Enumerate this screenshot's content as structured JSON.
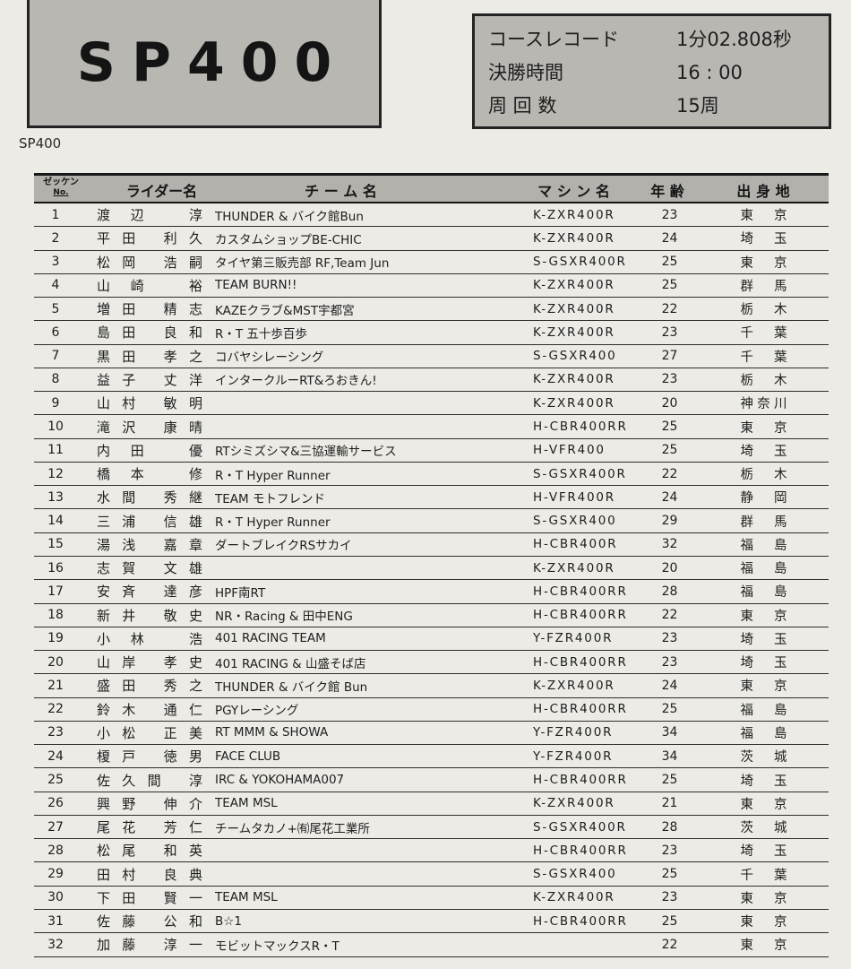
{
  "class_box": {
    "title": "SP400"
  },
  "info_box": {
    "rows": [
      {
        "label": "コースレコード",
        "value": "1分02.808秒"
      },
      {
        "label": "決勝時間",
        "value": "16 : 00"
      },
      {
        "label": "周 回 数",
        "value": "15周"
      }
    ]
  },
  "section_label": "SP400",
  "colors": {
    "box_fill": "#b9b7b2",
    "header_band": "#b3b1ac",
    "rule": "#2e2e2e",
    "page_bg": "#ecebe6"
  },
  "table": {
    "headers": {
      "no_top": "ゼッケン",
      "no_bottom": "No.",
      "rider": "ライダー名",
      "team": "チ ー ム 名",
      "machine": "マ シ ン 名",
      "age": "年 齢",
      "origin": "出 身 地"
    },
    "rows": [
      {
        "no": "1",
        "rider": "渡辺 淳",
        "team": "THUNDER & バイク館Bun",
        "machine": "K-ZXR400R",
        "age": "23",
        "origin": "東京"
      },
      {
        "no": "2",
        "rider": "平田 利久",
        "team": "カスタムショップBE-CHIC",
        "machine": "K-ZXR400R",
        "age": "24",
        "origin": "埼玉"
      },
      {
        "no": "3",
        "rider": "松岡 浩嗣",
        "team": "タイヤ第三販売部 RF,Team Jun",
        "machine": "S-GSXR400R",
        "age": "25",
        "origin": "東京"
      },
      {
        "no": "4",
        "rider": "山崎 裕",
        "team": "TEAM BURN!!",
        "machine": "K-ZXR400R",
        "age": "25",
        "origin": "群馬"
      },
      {
        "no": "5",
        "rider": "増田 精志",
        "team": "KAZEクラブ&MST宇都宮",
        "machine": "K-ZXR400R",
        "age": "22",
        "origin": "栃木"
      },
      {
        "no": "6",
        "rider": "島田 良和",
        "team": "R・T 五十歩百歩",
        "machine": "K-ZXR400R",
        "age": "23",
        "origin": "千葉"
      },
      {
        "no": "7",
        "rider": "黒田 孝之",
        "team": "コバヤシレーシング",
        "machine": "S-GSXR400",
        "age": "27",
        "origin": "千葉"
      },
      {
        "no": "8",
        "rider": "益子 丈洋",
        "team": "インタークルーRT&ろおきん!",
        "machine": "K-ZXR400R",
        "age": "23",
        "origin": "栃木"
      },
      {
        "no": "9",
        "rider": "山村 敏明",
        "team": "",
        "machine": "K-ZXR400R",
        "age": "20",
        "origin": "神奈川"
      },
      {
        "no": "10",
        "rider": "滝沢 康晴",
        "team": "",
        "machine": "H-CBR400RR",
        "age": "25",
        "origin": "東京"
      },
      {
        "no": "11",
        "rider": "内田 優",
        "team": "RTシミズシマ&三協運輸サービス",
        "machine": "H-VFR400",
        "age": "25",
        "origin": "埼玉"
      },
      {
        "no": "12",
        "rider": "橋本 修",
        "team": "R・T Hyper Runner",
        "machine": "S-GSXR400R",
        "age": "22",
        "origin": "栃木"
      },
      {
        "no": "13",
        "rider": "水間 秀継",
        "team": "TEAM モトフレンド",
        "machine": "H-VFR400R",
        "age": "24",
        "origin": "静岡"
      },
      {
        "no": "14",
        "rider": "三浦 信雄",
        "team": "R・T Hyper Runner",
        "machine": "S-GSXR400",
        "age": "29",
        "origin": "群馬"
      },
      {
        "no": "15",
        "rider": "湯浅 嘉章",
        "team": "ダートブレイクRSサカイ",
        "machine": "H-CBR400R",
        "age": "32",
        "origin": "福島"
      },
      {
        "no": "16",
        "rider": "志賀 文雄",
        "team": "",
        "machine": "K-ZXR400R",
        "age": "20",
        "origin": "福島"
      },
      {
        "no": "17",
        "rider": "安斉 達彦",
        "team": "HPF南RT",
        "machine": "H-CBR400RR",
        "age": "28",
        "origin": "福島"
      },
      {
        "no": "18",
        "rider": "新井 敬史",
        "team": "NR・Racing & 田中ENG",
        "machine": "H-CBR400RR",
        "age": "22",
        "origin": "東京"
      },
      {
        "no": "19",
        "rider": "小林 浩",
        "team": "401 RACING TEAM",
        "machine": "Y-FZR400R",
        "age": "23",
        "origin": "埼玉"
      },
      {
        "no": "20",
        "rider": "山岸 孝史",
        "team": "401 RACING & 山盛そば店",
        "machine": "H-CBR400RR",
        "age": "23",
        "origin": "埼玉"
      },
      {
        "no": "21",
        "rider": "盛田 秀之",
        "team": "THUNDER & バイク館 Bun",
        "machine": "K-ZXR400R",
        "age": "24",
        "origin": "東京"
      },
      {
        "no": "22",
        "rider": "鈴木 通仁",
        "team": "PGYレーシング",
        "machine": "H-CBR400RR",
        "age": "25",
        "origin": "福島"
      },
      {
        "no": "23",
        "rider": "小松 正美",
        "team": "RT MMM & SHOWA",
        "machine": "Y-FZR400R",
        "age": "34",
        "origin": "福島"
      },
      {
        "no": "24",
        "rider": "榎戸 徳男",
        "team": "FACE CLUB",
        "machine": "Y-FZR400R",
        "age": "34",
        "origin": "茨城"
      },
      {
        "no": "25",
        "rider": "佐久間 淳",
        "team": "IRC & YOKOHAMA007",
        "machine": "H-CBR400RR",
        "age": "25",
        "origin": "埼玉"
      },
      {
        "no": "26",
        "rider": "興野 伸介",
        "team": "TEAM MSL",
        "machine": "K-ZXR400R",
        "age": "21",
        "origin": "東京"
      },
      {
        "no": "27",
        "rider": "尾花 芳仁",
        "team": "チームタカノ+㈲尾花工業所",
        "machine": "S-GSXR400R",
        "age": "28",
        "origin": "茨城"
      },
      {
        "no": "28",
        "rider": "松尾 和英",
        "team": "",
        "machine": "H-CBR400RR",
        "age": "23",
        "origin": "埼玉"
      },
      {
        "no": "29",
        "rider": "田村 良典",
        "team": "",
        "machine": "S-GSXR400",
        "age": "25",
        "origin": "千葉"
      },
      {
        "no": "30",
        "rider": "下田 賢一",
        "team": "TEAM MSL",
        "machine": "K-ZXR400R",
        "age": "23",
        "origin": "東京"
      },
      {
        "no": "31",
        "rider": "佐藤 公和",
        "team": "B☆1",
        "machine": "H-CBR400RR",
        "age": "25",
        "origin": "東京"
      },
      {
        "no": "32",
        "rider": "加藤 淳一",
        "team": "モビットマックスR・T",
        "machine": "",
        "age": "22",
        "origin": "東京"
      }
    ]
  }
}
